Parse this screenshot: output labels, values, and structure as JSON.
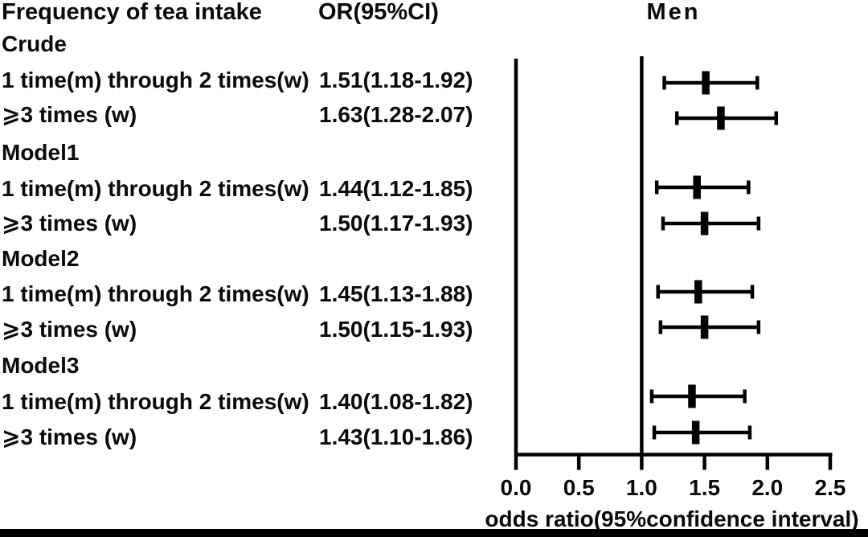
{
  "header": {
    "col_label": "Frequency of tea intake",
    "col_or": "OR(95%CI)"
  },
  "colors": {
    "ink": "#000000",
    "background": "#ffffff"
  },
  "chart_data": {
    "type": "forest",
    "panel_title": "Men",
    "xlabel": "odds ratio(95%confidence interval)",
    "xlim": [
      0.0,
      2.5
    ],
    "x_ticks": [
      "0.0",
      "0.5",
      "1.0",
      "1.5",
      "2.0",
      "2.5"
    ],
    "x_tick_values": [
      0.0,
      0.5,
      1.0,
      1.5,
      2.0,
      2.5
    ],
    "reference_line": 1.0,
    "grid": false,
    "groups": [
      {
        "name": "Crude",
        "rows": [
          {
            "label": "1 time(m) through 2 times(w)",
            "or_text": "1.51(1.18-1.92)",
            "or": 1.51,
            "ci_low": 1.18,
            "ci_high": 1.92
          },
          {
            "label": "⩾3 times (w)",
            "or_text": "1.63(1.28-2.07)",
            "or": 1.63,
            "ci_low": 1.28,
            "ci_high": 2.07
          }
        ]
      },
      {
        "name": "Model1",
        "rows": [
          {
            "label": "1 time(m) through 2 times(w)",
            "or_text": "1.44(1.12-1.85)",
            "or": 1.44,
            "ci_low": 1.12,
            "ci_high": 1.85
          },
          {
            "label": "⩾3 times (w)",
            "or_text": "1.50(1.17-1.93)",
            "or": 1.5,
            "ci_low": 1.17,
            "ci_high": 1.93
          }
        ]
      },
      {
        "name": "Model2",
        "rows": [
          {
            "label": "1 time(m) through 2 times(w)",
            "or_text": "1.45(1.13-1.88)",
            "or": 1.45,
            "ci_low": 1.13,
            "ci_high": 1.88
          },
          {
            "label": "⩾3 times (w)",
            "or_text": "1.50(1.15-1.93)",
            "or": 1.5,
            "ci_low": 1.15,
            "ci_high": 1.93
          }
        ]
      },
      {
        "name": "Model3",
        "rows": [
          {
            "label": "1 time(m) through 2 times(w)",
            "or_text": "1.40(1.08-1.82)",
            "or": 1.4,
            "ci_low": 1.08,
            "ci_high": 1.82
          },
          {
            "label": "⩾3 times (w)",
            "or_text": "1.43(1.10-1.86)",
            "or": 1.43,
            "ci_low": 1.1,
            "ci_high": 1.86
          }
        ]
      }
    ]
  }
}
